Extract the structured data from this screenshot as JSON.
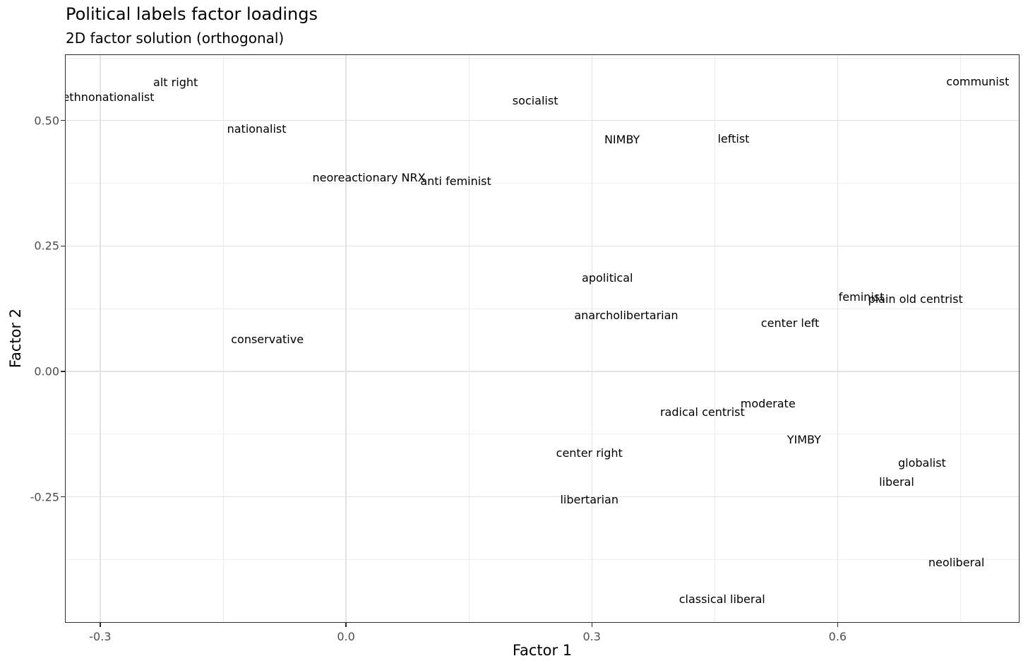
{
  "chart_data": {
    "type": "scatter",
    "mode": "text-labels",
    "title": "Political labels factor loadings",
    "subtitle": "2D factor solution (orthogonal)",
    "xlabel": "Factor 1",
    "ylabel": "Factor 2",
    "xlim": [
      -0.343,
      0.822
    ],
    "ylim": [
      -0.501,
      0.632
    ],
    "grid": "on",
    "legend_position": "none",
    "x_ticks": [
      {
        "value": -0.3,
        "label": "-0.3"
      },
      {
        "value": 0.0,
        "label": "0.0"
      },
      {
        "value": 0.3,
        "label": "0.3"
      },
      {
        "value": 0.6,
        "label": "0.6"
      }
    ],
    "y_ticks": [
      {
        "value": 0.5,
        "label": "0.50"
      },
      {
        "value": 0.25,
        "label": "0.25"
      },
      {
        "value": 0.0,
        "label": "0.00"
      },
      {
        "value": -0.25,
        "label": "-0.25"
      }
    ],
    "x_minor_ticks": [
      -0.15,
      0.15,
      0.45,
      0.75
    ],
    "y_minor_ticks": [
      0.625,
      0.375,
      0.125,
      -0.125,
      -0.375
    ],
    "points": [
      {
        "label": "ethnonationalist",
        "x": -0.29,
        "y": 0.546
      },
      {
        "label": "alt right",
        "x": -0.208,
        "y": 0.575
      },
      {
        "label": "nationalist",
        "x": -0.109,
        "y": 0.483
      },
      {
        "label": "socialist",
        "x": 0.231,
        "y": 0.539
      },
      {
        "label": "communist",
        "x": 0.771,
        "y": 0.577
      },
      {
        "label": "NIMBY",
        "x": 0.337,
        "y": 0.461
      },
      {
        "label": "leftist",
        "x": 0.473,
        "y": 0.463
      },
      {
        "label": "neoreactionary NRX",
        "x": 0.028,
        "y": 0.386
      },
      {
        "label": "anti feminist",
        "x": 0.134,
        "y": 0.379
      },
      {
        "label": "apolitical",
        "x": 0.319,
        "y": 0.186
      },
      {
        "label": "anarcholibertarian",
        "x": 0.342,
        "y": 0.111
      },
      {
        "label": "feminist",
        "x": 0.629,
        "y": 0.148
      },
      {
        "label": "plain old centrist",
        "x": 0.695,
        "y": 0.144
      },
      {
        "label": "center left",
        "x": 0.542,
        "y": 0.096
      },
      {
        "label": "conservative",
        "x": -0.096,
        "y": 0.063
      },
      {
        "label": "moderate",
        "x": 0.515,
        "y": -0.065
      },
      {
        "label": "radical centrist",
        "x": 0.435,
        "y": -0.082
      },
      {
        "label": "YIMBY",
        "x": 0.559,
        "y": -0.137
      },
      {
        "label": "center right",
        "x": 0.297,
        "y": -0.163
      },
      {
        "label": "globalist",
        "x": 0.703,
        "y": -0.183
      },
      {
        "label": "liberal",
        "x": 0.672,
        "y": -0.221
      },
      {
        "label": "libertarian",
        "x": 0.297,
        "y": -0.256
      },
      {
        "label": "neoliberal",
        "x": 0.745,
        "y": -0.382
      },
      {
        "label": "classical liberal",
        "x": 0.459,
        "y": -0.454
      }
    ],
    "colors": {
      "background": "#ffffff",
      "panel_background": "#ffffff",
      "panel_border": "#2e2e2e",
      "grid_major": "#e2e2e2",
      "grid_minor": "#ededed",
      "label_text": "#000000",
      "tick_text": "#4d4d4d",
      "title_text": "#000000"
    }
  }
}
